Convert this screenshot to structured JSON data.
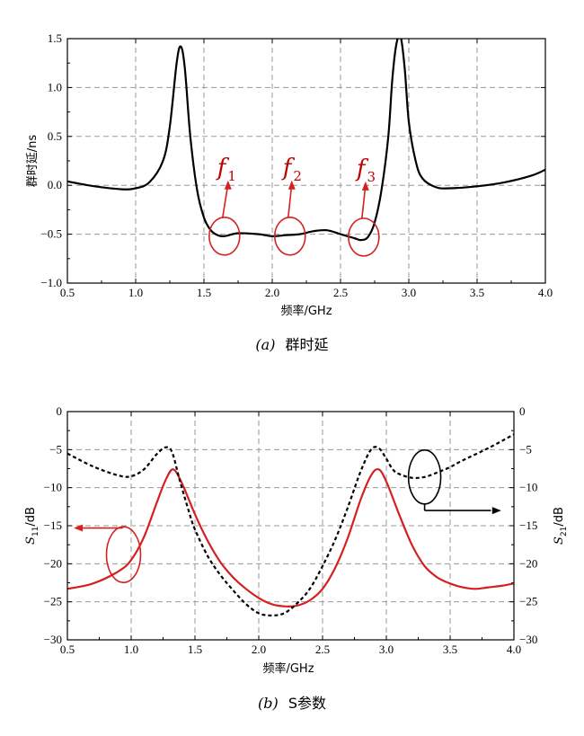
{
  "chart_data": [
    {
      "type": "line",
      "caption_letter": "(a)",
      "caption_text": "群时延",
      "xlabel": "频率/GHz",
      "ylabel": "群时延/ns",
      "xlim": [
        0.5,
        4.0
      ],
      "ylim": [
        -1.0,
        1.5
      ],
      "x_ticks": [
        "0.5",
        "1.0",
        "1.5",
        "2.0",
        "2.5",
        "3.0",
        "3.5",
        "4.0"
      ],
      "y_ticks": [
        "-1.0",
        "-0.5",
        "0.0",
        "0.5",
        "1.0",
        "1.5"
      ],
      "grid": true,
      "series": [
        {
          "color": "#000000",
          "dashed": false,
          "x": [
            0.5,
            0.7,
            0.9,
            1.0,
            1.1,
            1.2,
            1.25,
            1.3,
            1.33,
            1.36,
            1.4,
            1.45,
            1.5,
            1.55,
            1.6,
            1.65,
            1.75,
            1.9,
            2.0,
            2.1,
            2.2,
            2.3,
            2.4,
            2.5,
            2.6,
            2.65,
            2.7,
            2.75,
            2.8,
            2.85,
            2.88,
            2.91,
            2.94,
            2.97,
            3.0,
            3.05,
            3.1,
            3.2,
            3.3,
            3.5,
            3.7,
            3.9,
            4.0
          ],
          "y": [
            0.04,
            -0.01,
            -0.04,
            -0.03,
            0.03,
            0.25,
            0.6,
            1.25,
            1.42,
            1.2,
            0.5,
            -0.05,
            -0.33,
            -0.46,
            -0.51,
            -0.52,
            -0.49,
            -0.5,
            -0.52,
            -0.51,
            -0.5,
            -0.47,
            -0.46,
            -0.5,
            -0.54,
            -0.56,
            -0.53,
            -0.38,
            -0.05,
            0.5,
            1.1,
            1.45,
            1.52,
            1.2,
            0.65,
            0.25,
            0.07,
            -0.02,
            -0.03,
            -0.01,
            0.03,
            0.1,
            0.16
          ]
        }
      ],
      "annotations": [
        {
          "label": "f",
          "sub": "1",
          "x": 1.65,
          "y": -0.52
        },
        {
          "label": "f",
          "sub": "2",
          "x": 2.13,
          "y": -0.52
        },
        {
          "label": "f",
          "sub": "3",
          "x": 2.67,
          "y": -0.53
        }
      ]
    },
    {
      "type": "line",
      "caption_letter": "(b)",
      "caption_text": "S参数",
      "xlabel": "频率/GHz",
      "ylabel_left_main": "S",
      "ylabel_left_sub": "11",
      "ylabel_left_unit": "/dB",
      "ylabel_right_main": "S",
      "ylabel_right_sub": "21",
      "ylabel_right_unit": "/dB",
      "xlim": [
        0.5,
        4.0
      ],
      "ylim": [
        -30,
        0
      ],
      "ylim_right": [
        -30,
        0
      ],
      "x_ticks": [
        "0.5",
        "1.0",
        "1.5",
        "2.0",
        "2.5",
        "3.0",
        "3.5",
        "4.0"
      ],
      "y_ticks": [
        "-30",
        "-25",
        "-20",
        "-15",
        "-10",
        "-5",
        "0"
      ],
      "y_ticks_right": [
        "-30",
        "-25",
        "-20",
        "-15",
        "-10",
        "-5",
        "0"
      ],
      "grid": true,
      "series": [
        {
          "color": "#d42020",
          "dashed": false,
          "axis": "left",
          "x": [
            0.5,
            0.7,
            0.9,
            1.0,
            1.1,
            1.2,
            1.27,
            1.33,
            1.4,
            1.5,
            1.6,
            1.7,
            1.8,
            1.9,
            2.0,
            2.1,
            2.2,
            2.3,
            2.4,
            2.5,
            2.6,
            2.7,
            2.8,
            2.88,
            2.94,
            3.0,
            3.1,
            3.2,
            3.3,
            3.4,
            3.5,
            3.6,
            3.7,
            3.8,
            3.9,
            4.0
          ],
          "y": [
            -23.3,
            -22.6,
            -21.0,
            -19.5,
            -16.5,
            -12.0,
            -9.0,
            -7.6,
            -9.5,
            -13.5,
            -17.0,
            -19.8,
            -21.8,
            -23.3,
            -24.5,
            -25.3,
            -25.6,
            -25.5,
            -24.8,
            -23.3,
            -20.5,
            -16.5,
            -11.5,
            -8.4,
            -7.6,
            -9.2,
            -13.5,
            -17.5,
            -20.3,
            -21.8,
            -22.6,
            -23.1,
            -23.3,
            -23.1,
            -22.9,
            -22.6
          ]
        },
        {
          "color": "#000000",
          "dashed": true,
          "axis": "right",
          "x": [
            0.5,
            0.7,
            0.9,
            1.0,
            1.1,
            1.2,
            1.27,
            1.32,
            1.38,
            1.45,
            1.5,
            1.6,
            1.7,
            1.8,
            1.9,
            2.0,
            2.1,
            2.2,
            2.3,
            2.4,
            2.5,
            2.6,
            2.7,
            2.8,
            2.88,
            2.94,
            3.0,
            3.05,
            3.1,
            3.2,
            3.3,
            3.4,
            3.5,
            3.6,
            3.8,
            4.0
          ],
          "y": [
            -5.5,
            -7.2,
            -8.4,
            -8.5,
            -7.6,
            -5.6,
            -4.7,
            -5.3,
            -9.0,
            -13.0,
            -15.5,
            -19.0,
            -21.5,
            -23.5,
            -25.3,
            -26.5,
            -26.8,
            -26.5,
            -25.2,
            -23.3,
            -20.3,
            -16.8,
            -12.5,
            -7.8,
            -5.0,
            -4.8,
            -6.2,
            -7.6,
            -8.2,
            -8.7,
            -8.6,
            -8.0,
            -7.3,
            -6.4,
            -4.8,
            -3.0
          ]
        }
      ]
    }
  ]
}
